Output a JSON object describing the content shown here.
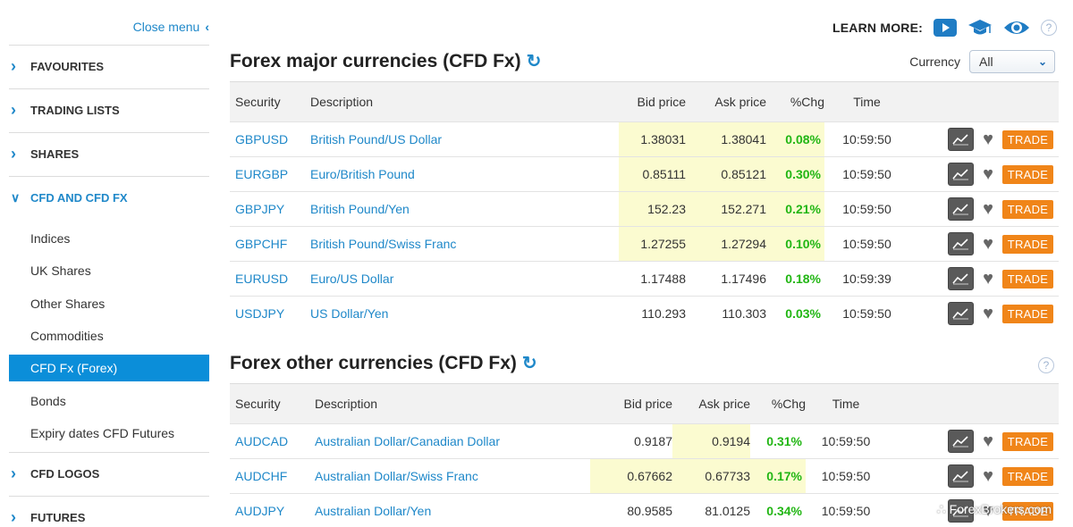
{
  "sidebar": {
    "close_menu": "Close menu",
    "sections": [
      {
        "label": "FAVOURITES"
      },
      {
        "label": "TRADING LISTS"
      },
      {
        "label": "SHARES"
      },
      {
        "label": "CFD AND CFD FX"
      },
      {
        "label": "CFD LOGOS"
      },
      {
        "label": "FUTURES"
      }
    ],
    "subitems": [
      {
        "label": "Indices"
      },
      {
        "label": "UK Shares"
      },
      {
        "label": "Other Shares"
      },
      {
        "label": "Commodities"
      },
      {
        "label": "CFD Fx (Forex)"
      },
      {
        "label": "Bonds"
      },
      {
        "label": "Expiry dates CFD Futures"
      }
    ]
  },
  "learn_more": {
    "label": "LEARN MORE:",
    "help": "?"
  },
  "currency_filter": {
    "label": "Currency",
    "value": "All"
  },
  "columns": {
    "security": "Security",
    "description": "Description",
    "bid": "Bid price",
    "ask": "Ask price",
    "chg": "%Chg",
    "time": "Time"
  },
  "trade_label": "TRADE",
  "major": {
    "title": "Forex major currencies (CFD Fx)",
    "rows": [
      {
        "security": "GBPUSD",
        "description": "British Pound/US Dollar",
        "bid": "1.38031",
        "ask": "1.38041",
        "chg": "0.08%",
        "time": "10:59:50"
      },
      {
        "security": "EURGBP",
        "description": "Euro/British Pound",
        "bid": "0.85111",
        "ask": "0.85121",
        "chg": "0.30%",
        "time": "10:59:50"
      },
      {
        "security": "GBPJPY",
        "description": "British Pound/Yen",
        "bid": "152.23",
        "ask": "152.271",
        "chg": "0.21%",
        "time": "10:59:50"
      },
      {
        "security": "GBPCHF",
        "description": "British Pound/Swiss Franc",
        "bid": "1.27255",
        "ask": "1.27294",
        "chg": "0.10%",
        "time": "10:59:50"
      },
      {
        "security": "EURUSD",
        "description": "Euro/US Dollar",
        "bid": "1.17488",
        "ask": "1.17496",
        "chg": "0.18%",
        "time": "10:59:39"
      },
      {
        "security": "USDJPY",
        "description": "US Dollar/Yen",
        "bid": "110.293",
        "ask": "110.303",
        "chg": "0.03%",
        "time": "10:59:50"
      }
    ]
  },
  "other": {
    "title": "Forex other currencies (CFD Fx)",
    "help": "?",
    "rows": [
      {
        "security": "AUDCAD",
        "description": "Australian Dollar/Canadian Dollar",
        "bid": "0.9187",
        "ask": "0.9194",
        "chg": "0.31%",
        "time": "10:59:50"
      },
      {
        "security": "AUDCHF",
        "description": "Australian Dollar/Swiss Franc",
        "bid": "0.67662",
        "ask": "0.67733",
        "chg": "0.17%",
        "time": "10:59:50"
      },
      {
        "security": "AUDJPY",
        "description": "Australian Dollar/Yen",
        "bid": "80.9585",
        "ask": "81.0125",
        "chg": "0.34%",
        "time": "10:59:50"
      }
    ]
  },
  "watermark": "ForexBrokers.com",
  "colors": {
    "accent": "#1f88c9",
    "trade": "#f08519",
    "positive": "#22b614",
    "highlight": "#fbfbd0",
    "active_nav": "#0b8ed9"
  }
}
